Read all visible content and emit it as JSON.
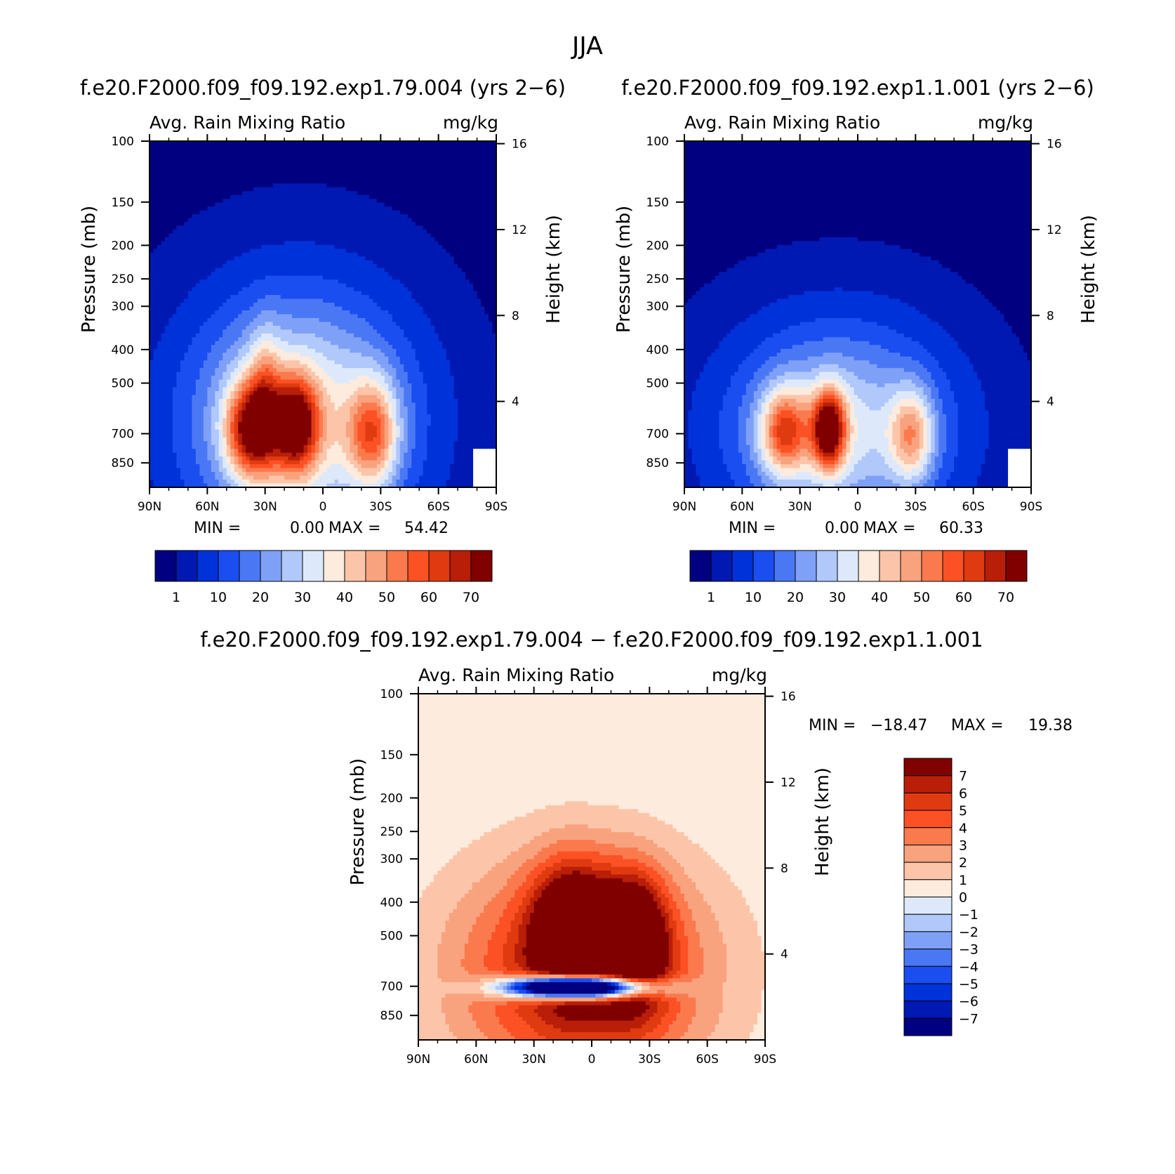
{
  "title": "JJA",
  "colors": {
    "seq": [
      "#000080",
      "#0019b3",
      "#0032d9",
      "#1a4ef0",
      "#4a78f5",
      "#7fa0f7",
      "#b0c8fa",
      "#dde9fb",
      "#fdebdd",
      "#fcc5a9",
      "#f9a27e",
      "#fa7a4e",
      "#fb5124",
      "#e03a10",
      "#b81e08",
      "#800000"
    ],
    "div": [
      "#000080",
      "#0019b3",
      "#0032d9",
      "#1a4ef0",
      "#4a78f5",
      "#7fa0f7",
      "#b0c8fa",
      "#dde9fb",
      "#fdebdd",
      "#fcc5a9",
      "#f9a27e",
      "#fa7a4e",
      "#fb5124",
      "#e03a10",
      "#b81e08",
      "#800000"
    ]
  },
  "chart_data": [
    {
      "type": "heatmap",
      "case_title": "f.e20.F2000.f09_f09.192.exp1.79.004 (yrs 2−6)",
      "left_string": "Avg. Rain Mixing Ratio",
      "right_string": "mg/kg",
      "ylabel": "Pressure (mb)",
      "y2label": "Height (km)",
      "x_ticks": [
        "90N",
        "60N",
        "30N",
        "0",
        "30S",
        "60S",
        "90S"
      ],
      "y_ticks": [
        100,
        150,
        200,
        250,
        300,
        400,
        500,
        700,
        850
      ],
      "y_scale": "log",
      "ylim": [
        100,
        1000
      ],
      "y2_ticks": [
        16,
        12,
        8,
        4
      ],
      "min_label": "MIN =",
      "min_value": "0.00",
      "max_label": "MAX =",
      "max_value": "54.42",
      "colorbar_labels": [
        "1",
        "10",
        "20",
        "30",
        "40",
        "50",
        "60",
        "70"
      ],
      "colorbar_levels": [
        1,
        5,
        10,
        15,
        20,
        25,
        30,
        35,
        40,
        45,
        50,
        55,
        60,
        65,
        70
      ],
      "blobs": [
        {
          "lat": 12,
          "p": 640,
          "amp": 40,
          "sx": 40,
          "sy": 0.58
        },
        {
          "lat": 38,
          "p": 680,
          "amp": 46,
          "sx": 9,
          "sy": 0.22
        },
        {
          "lat": 14,
          "p": 660,
          "amp": 48,
          "sx": 8,
          "sy": 0.22
        },
        {
          "lat": -26,
          "p": 700,
          "amp": 36,
          "sx": 9,
          "sy": 0.25
        },
        {
          "lat": 30,
          "p": 550,
          "amp": 20,
          "sx": 6,
          "sy": 0.3
        }
      ]
    },
    {
      "type": "heatmap",
      "case_title": "f.e20.F2000.f09_f09.192.exp1.1.001 (yrs 2−6)",
      "left_string": "Avg. Rain Mixing Ratio",
      "right_string": "mg/kg",
      "ylabel": "Pressure (mb)",
      "y2label": "Height (km)",
      "x_ticks": [
        "90N",
        "60N",
        "30N",
        "0",
        "30S",
        "60S",
        "90S"
      ],
      "y_ticks": [
        100,
        150,
        200,
        250,
        300,
        400,
        500,
        700,
        850
      ],
      "y_scale": "log",
      "ylim": [
        100,
        1000
      ],
      "y2_ticks": [
        16,
        12,
        8,
        4
      ],
      "min_label": "MIN =",
      "min_value": "0.00",
      "max_label": "MAX =",
      "max_value": "60.33",
      "colorbar_labels": [
        "1",
        "10",
        "20",
        "30",
        "40",
        "50",
        "60",
        "70"
      ],
      "colorbar_levels": [
        1,
        5,
        10,
        15,
        20,
        25,
        30,
        35,
        40,
        45,
        50,
        55,
        60,
        65,
        70
      ],
      "blobs": [
        {
          "lat": 10,
          "p": 680,
          "amp": 33,
          "sx": 40,
          "sy": 0.48
        },
        {
          "lat": 38,
          "p": 690,
          "amp": 38,
          "sx": 9,
          "sy": 0.2
        },
        {
          "lat": 15,
          "p": 680,
          "amp": 56,
          "sx": 6,
          "sy": 0.18
        },
        {
          "lat": -28,
          "p": 710,
          "amp": 30,
          "sx": 8,
          "sy": 0.22
        }
      ]
    },
    {
      "type": "heatmap",
      "case_title": "f.e20.F2000.f09_f09.192.exp1.79.004 − f.e20.F2000.f09_f09.192.exp1.1.001",
      "left_string": "Avg. Rain Mixing Ratio",
      "right_string": "mg/kg",
      "ylabel": "Pressure (mb)",
      "y2label": "Height (km)",
      "x_ticks": [
        "90N",
        "60N",
        "30N",
        "0",
        "30S",
        "60S",
        "90S"
      ],
      "y_ticks": [
        100,
        150,
        200,
        250,
        300,
        400,
        500,
        700,
        850
      ],
      "y_scale": "log",
      "ylim": [
        100,
        1000
      ],
      "y2_ticks": [
        16,
        12,
        8,
        4
      ],
      "min_label": "MIN =",
      "min_value": "−18.47",
      "max_label": "MAX =",
      "max_value": "19.38",
      "colorbar_labels": [
        "7",
        "6",
        "5",
        "4",
        "3",
        "2",
        "1",
        "0",
        "−1",
        "−2",
        "−3",
        "−4",
        "−5",
        "−6",
        "−7"
      ],
      "colorbar_levels": [
        -7,
        -6,
        -5,
        -4,
        -3,
        -2,
        -1,
        0,
        1,
        2,
        3,
        4,
        5,
        6,
        7
      ],
      "blobs": [
        {
          "lat": 5,
          "p": 640,
          "amp": 7,
          "sx": 48,
          "sy": 0.55
        },
        {
          "lat": 10,
          "p": 480,
          "amp": 8,
          "sx": 14,
          "sy": 0.3
        },
        {
          "lat": -22,
          "p": 520,
          "amp": 8,
          "sx": 12,
          "sy": 0.3
        },
        {
          "lat": 8,
          "p": 705,
          "amp": -25,
          "sx": 24,
          "sy": 0.05
        }
      ]
    }
  ]
}
